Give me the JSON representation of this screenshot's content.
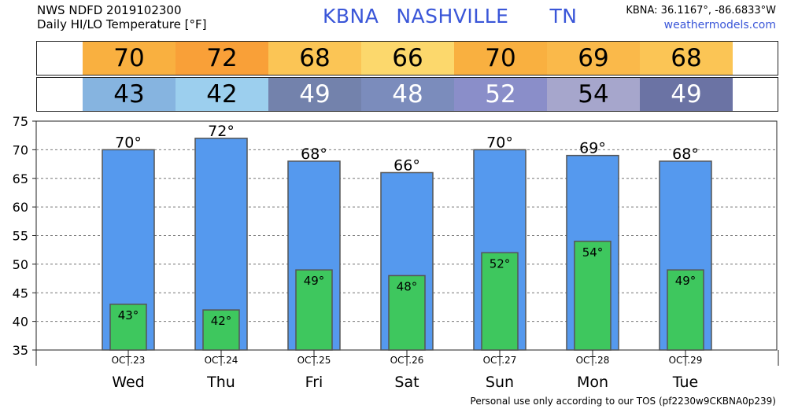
{
  "header": {
    "line1": "NWS NDFD 2019102300",
    "line2": "Daily HI/LO Temperature [°F]",
    "station": "KBNA",
    "city": "NASHVILLE",
    "state": "TN",
    "coords": "KBNA: 36.1167°, -86.6833°W",
    "site": "weathermodels.com"
  },
  "hi_row": [
    {
      "value": "70",
      "color": "#f9b040"
    },
    {
      "value": "72",
      "color": "#f9a038"
    },
    {
      "value": "68",
      "color": "#fbc555"
    },
    {
      "value": "66",
      "color": "#fcd86c"
    },
    {
      "value": "70",
      "color": "#f9b040"
    },
    {
      "value": "69",
      "color": "#fab94a"
    },
    {
      "value": "68",
      "color": "#fbc555"
    }
  ],
  "lo_row": [
    {
      "value": "43",
      "color": "#86b4e0",
      "text": "#000000"
    },
    {
      "value": "42",
      "color": "#9ccfee",
      "text": "#000000"
    },
    {
      "value": "49",
      "color": "#7382ac",
      "text": "#ffffff"
    },
    {
      "value": "48",
      "color": "#7b8cbc",
      "text": "#ffffff"
    },
    {
      "value": "52",
      "color": "#8a8ec9",
      "text": "#ffffff"
    },
    {
      "value": "54",
      "color": "#a6a6cc",
      "text": "#000000"
    },
    {
      "value": "49",
      "color": "#6b73a4",
      "text": "#ffffff"
    }
  ],
  "chart_data": {
    "type": "bar",
    "categories": [
      "Wed",
      "Thu",
      "Fri",
      "Sat",
      "Sun",
      "Mon",
      "Tue"
    ],
    "dates": [
      "OCT.23",
      "OCT.24",
      "OCT.25",
      "OCT.26",
      "OCT.27",
      "OCT.28",
      "OCT.29"
    ],
    "series": [
      {
        "values": [
          70,
          72,
          68,
          66,
          70,
          69,
          68
        ],
        "color": "#5599ee"
      },
      {
        "values": [
          43,
          42,
          49,
          48,
          52,
          54,
          49
        ],
        "color": "#3ec75e"
      }
    ],
    "hi_labels": [
      "70°",
      "72°",
      "68°",
      "66°",
      "70°",
      "69°",
      "68°"
    ],
    "lo_labels": [
      "43°",
      "42°",
      "49°",
      "48°",
      "52°",
      "54°",
      "49°"
    ],
    "yticks": [
      35,
      40,
      45,
      50,
      55,
      60,
      65,
      70,
      75
    ],
    "ylim": [
      35,
      75
    ],
    "grid": true
  },
  "footer": "Personal use only according to our TOS (pf2230w9CKBNA0p239)"
}
